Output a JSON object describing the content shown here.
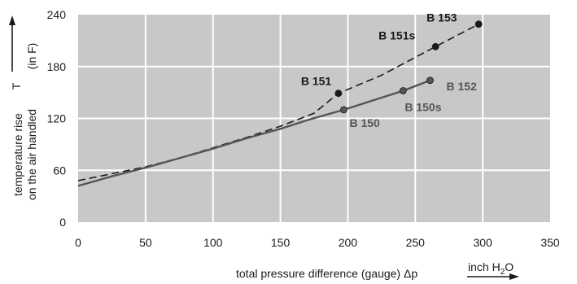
{
  "chart_data": {
    "type": "line",
    "xlim": [
      0,
      350
    ],
    "ylim": [
      0,
      240
    ],
    "x_ticks": [
      "0",
      "50",
      "100",
      "150",
      "200",
      "250",
      "300",
      "350"
    ],
    "y_ticks": [
      "0",
      "60",
      "120",
      "180",
      "240"
    ],
    "grid": true,
    "plot_background": "#c8c8c8",
    "grid_color": "#ffffff",
    "xlabel": "total pressure difference (gauge) Δp",
    "xunit": "inch H",
    "xunit_sub": "2",
    "xunit_tail": "O",
    "ylabel_line1": "temperature rise",
    "ylabel_line2": "on the air handled",
    "ylabel_symbol": "T",
    "ylabel_unit": "(in F)",
    "series": [
      {
        "style": "dashed",
        "color": "#1a1a1a",
        "x": [
          0,
          25,
          50,
          75,
          100,
          125,
          150,
          175,
          193,
          225,
          265,
          297
        ],
        "y": [
          48,
          56,
          64,
          74,
          86,
          98,
          111,
          126,
          149,
          170,
          203,
          229
        ]
      },
      {
        "style": "solid",
        "color": "#555555",
        "x": [
          0,
          25,
          50,
          75,
          100,
          125,
          150,
          170,
          197,
          241,
          261
        ],
        "y": [
          42,
          53,
          63,
          74,
          85,
          97,
          108,
          118,
          130,
          152,
          164
        ]
      }
    ],
    "points": [
      {
        "label": "B 151",
        "x": 193,
        "y": 149,
        "color": "#1a1a1a",
        "style": "dark"
      },
      {
        "label": "B 151s",
        "x": 265,
        "y": 203,
        "color": "#1a1a1a",
        "style": "dark"
      },
      {
        "label": "B 153",
        "x": 297,
        "y": 229,
        "color": "#1a1a1a",
        "style": "dark"
      },
      {
        "label": "B 150",
        "x": 197,
        "y": 130,
        "color": "#555555",
        "style": "grey"
      },
      {
        "label": "B 150s",
        "x": 241,
        "y": 152,
        "color": "#555555",
        "style": "grey"
      },
      {
        "label": "B 152",
        "x": 261,
        "y": 164,
        "color": "#555555",
        "style": "grey"
      }
    ]
  }
}
